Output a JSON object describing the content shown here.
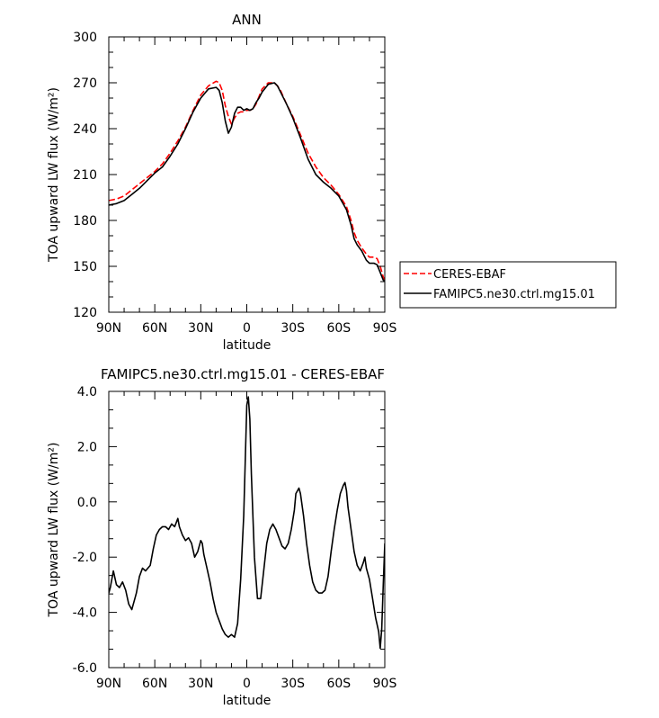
{
  "chart_data": [
    {
      "type": "line",
      "title": "ANN",
      "xlabel": "latitude",
      "ylabel": "TOA upward LW flux (W/m²)",
      "xlim": [
        90,
        -90
      ],
      "ylim": [
        120,
        300
      ],
      "xticks": [
        90,
        60,
        30,
        0,
        -30,
        -60,
        -90
      ],
      "xtick_labels": [
        "90N",
        "60N",
        "30N",
        "0",
        "30S",
        "60S",
        "90S"
      ],
      "yticks": [
        120,
        150,
        180,
        210,
        240,
        270,
        300
      ],
      "ytick_labels": [
        "120",
        "150",
        "180",
        "210",
        "240",
        "270",
        "300"
      ],
      "grid": false,
      "legend": "outside-right",
      "series": [
        {
          "name": "CERES-EBAF",
          "color": "#ff0000",
          "dash": "dashed",
          "x": [
            90,
            85,
            80,
            75,
            70,
            65,
            60,
            55,
            50,
            45,
            40,
            35,
            30,
            25,
            20,
            18,
            16,
            14,
            12,
            10,
            8,
            6,
            4,
            2,
            0,
            -2,
            -4,
            -6,
            -8,
            -10,
            -14,
            -18,
            -20,
            -22,
            -26,
            -30,
            -35,
            -40,
            -45,
            -50,
            -55,
            -60,
            -65,
            -68,
            -70,
            -72,
            -75,
            -78,
            -80,
            -83,
            -85,
            -87,
            -89,
            -90
          ],
          "y": [
            193,
            194,
            196,
            200,
            204,
            208,
            212,
            217,
            224,
            232,
            241,
            252,
            262,
            268,
            271,
            270,
            265,
            255,
            248,
            243,
            247,
            250,
            251,
            251,
            252,
            252,
            253,
            256,
            261,
            266,
            270,
            270,
            268,
            265,
            256,
            248,
            236,
            224,
            215,
            208,
            203,
            197,
            189,
            180,
            172,
            167,
            162,
            158,
            156,
            156,
            155,
            150,
            143,
            141
          ]
        },
        {
          "name": "FAMIPC5.ne30.ctrl.mg15.01",
          "color": "#000000",
          "dash": "solid",
          "x": [
            90,
            85,
            80,
            75,
            70,
            65,
            60,
            55,
            50,
            45,
            40,
            35,
            30,
            25,
            20,
            18,
            16,
            14,
            12,
            10,
            8,
            6,
            4,
            2,
            0,
            -2,
            -4,
            -6,
            -8,
            -10,
            -14,
            -18,
            -20,
            -22,
            -26,
            -30,
            -35,
            -40,
            -45,
            -50,
            -55,
            -60,
            -65,
            -68,
            -70,
            -72,
            -75,
            -78,
            -80,
            -83,
            -85,
            -87,
            -89,
            -90
          ],
          "y": [
            190,
            191,
            193,
            197,
            201,
            206,
            211,
            215,
            222,
            230,
            240,
            251,
            260,
            266,
            267,
            265,
            257,
            245,
            237,
            241,
            250,
            254,
            254,
            252,
            253,
            252,
            253,
            257,
            260,
            264,
            269,
            270,
            268,
            264,
            256,
            247,
            234,
            220,
            210,
            205,
            201,
            196,
            187,
            177,
            168,
            164,
            160,
            154,
            152,
            152,
            151,
            146,
            141,
            140
          ]
        }
      ]
    },
    {
      "type": "line",
      "title": "FAMIPC5.ne30.ctrl.mg15.01 - CERES-EBAF",
      "xlabel": "latitude",
      "ylabel": "TOA upward LW flux (W/m²)",
      "xlim": [
        90,
        -90
      ],
      "ylim": [
        -6.0,
        4.0
      ],
      "xticks": [
        90,
        60,
        30,
        0,
        -30,
        -60,
        -90
      ],
      "xtick_labels": [
        "90N",
        "60N",
        "30N",
        "0",
        "30S",
        "60S",
        "90S"
      ],
      "yticks": [
        -6,
        -4,
        -2,
        0,
        2,
        4
      ],
      "ytick_labels": [
        "-6.0",
        "-4.0",
        "-2.0",
        "0.0",
        "2.0",
        "4.0"
      ],
      "grid": false,
      "series": [
        {
          "color": "#000000",
          "dash": "solid",
          "x": [
            90,
            89,
            87,
            85,
            83,
            81,
            79,
            77,
            75,
            73,
            72,
            70,
            68,
            66,
            63,
            61,
            59,
            57,
            55,
            53,
            51,
            49,
            47,
            45,
            44,
            42,
            40,
            38,
            36,
            34,
            32,
            30,
            29,
            28,
            26,
            24,
            22,
            20,
            18,
            16,
            14,
            12,
            10,
            8,
            6,
            4,
            2,
            1,
            0,
            -1,
            -2,
            -3,
            -5,
            -7,
            -9,
            -11,
            -13,
            -15,
            -17,
            -19,
            -21,
            -23,
            -25,
            -27,
            -29,
            -31,
            -32,
            -34,
            -35,
            -37,
            -39,
            -41,
            -43,
            -45,
            -47,
            -49,
            -51,
            -53,
            -55,
            -57,
            -59,
            -61,
            -63,
            -64,
            -65,
            -66,
            -68,
            -70,
            -72,
            -74,
            -76,
            -77,
            -78,
            -80,
            -82,
            -84,
            -86,
            -87,
            -88,
            -89,
            -90
          ],
          "y": [
            -3.3,
            -3.1,
            -2.5,
            -3.0,
            -3.1,
            -2.9,
            -3.2,
            -3.7,
            -3.9,
            -3.5,
            -3.3,
            -2.7,
            -2.4,
            -2.5,
            -2.3,
            -1.7,
            -1.2,
            -1.0,
            -0.9,
            -0.9,
            -1.0,
            -0.8,
            -0.9,
            -0.6,
            -0.9,
            -1.2,
            -1.4,
            -1.3,
            -1.5,
            -2.0,
            -1.8,
            -1.4,
            -1.5,
            -1.9,
            -2.4,
            -2.9,
            -3.5,
            -4.0,
            -4.3,
            -4.6,
            -4.8,
            -4.9,
            -4.8,
            -4.9,
            -4.4,
            -2.8,
            -0.5,
            1.5,
            3.5,
            3.8,
            3.0,
            1.0,
            -2.0,
            -3.5,
            -3.5,
            -2.5,
            -1.5,
            -1.0,
            -0.8,
            -1.0,
            -1.3,
            -1.6,
            -1.7,
            -1.5,
            -1.0,
            -0.3,
            0.3,
            0.5,
            0.3,
            -0.5,
            -1.5,
            -2.3,
            -2.9,
            -3.2,
            -3.3,
            -3.3,
            -3.2,
            -2.7,
            -1.8,
            -1.0,
            -0.3,
            0.3,
            0.6,
            0.7,
            0.4,
            -0.2,
            -1.0,
            -1.8,
            -2.3,
            -2.5,
            -2.2,
            -2.0,
            -2.4,
            -2.8,
            -3.5,
            -4.2,
            -4.7,
            -5.3,
            -4.6,
            -3.0,
            -1.5
          ]
        }
      ]
    }
  ]
}
